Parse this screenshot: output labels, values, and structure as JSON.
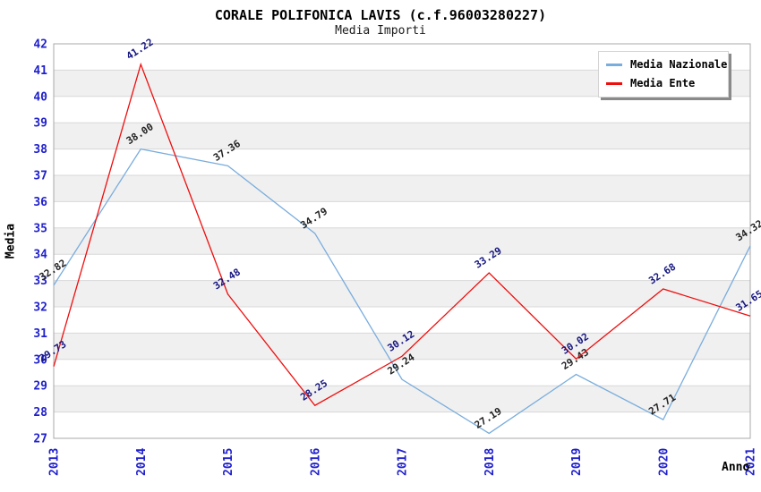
{
  "chart_data": {
    "type": "line",
    "title": "CORALE POLIFONICA LAVIS (c.f.96003280227)",
    "subtitle": "Media Importi",
    "xlabel": "Anno",
    "ylabel": "Media",
    "x": [
      "2013",
      "2014",
      "2015",
      "2016",
      "2017",
      "2018",
      "2019",
      "2020",
      "2021"
    ],
    "ylim": [
      27,
      42
    ],
    "y_tick_step": 1,
    "grid": "horizontal",
    "legend_position": "top-right",
    "series": [
      {
        "name": "Media Nazionale",
        "color": "#7aaddd",
        "label_color": "#222222",
        "values": [
          32.82,
          38.0,
          37.36,
          34.79,
          29.24,
          27.19,
          29.43,
          27.71,
          34.32
        ]
      },
      {
        "name": "Media Ente",
        "color": "#ee0e0e",
        "label_color": "#151580",
        "values": [
          29.73,
          41.22,
          32.48,
          28.25,
          30.12,
          33.29,
          30.02,
          32.68,
          31.65
        ]
      }
    ],
    "colors": {
      "tick_label": "#2020cc",
      "band": "#f0f0f0",
      "grid": "#d8d8d8",
      "plot_border": "#a8a8a8",
      "background": "#ffffff"
    }
  }
}
